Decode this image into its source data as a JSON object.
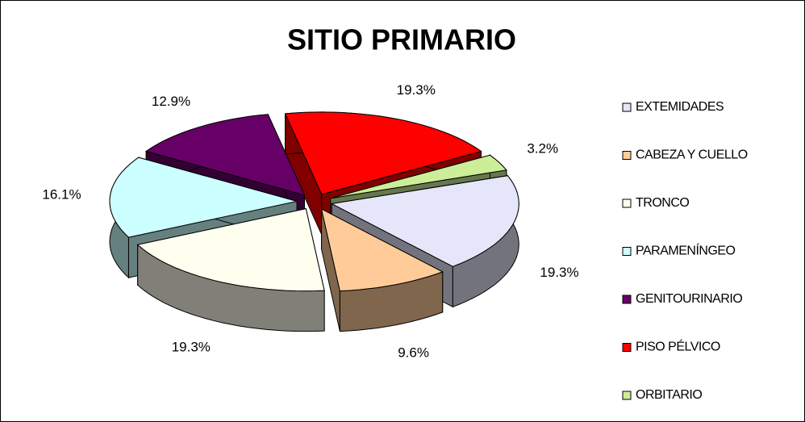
{
  "chart_data": {
    "type": "pie3d",
    "title": "SITIO PRIMARIO",
    "categories": [
      "EXTEMIDADES",
      "CABEZA Y CUELLO",
      "TRONCO",
      "PARAMENÍNGEO",
      "GENITOURINARIO",
      "PISO PÉLVICO",
      "ORBITARIO"
    ],
    "values": [
      19.3,
      9.6,
      19.3,
      16.1,
      12.9,
      19.3,
      3.2
    ],
    "value_labels": [
      "19.3%",
      "9.6%",
      "19.3%",
      "16.1%",
      "12.9%",
      "19.3%",
      "3.2%"
    ],
    "colors": [
      "#e6e6fa",
      "#ffcc99",
      "#fffff0",
      "#ccffff",
      "#660066",
      "#ff0000",
      "#ccee99"
    ],
    "legend": "right"
  }
}
